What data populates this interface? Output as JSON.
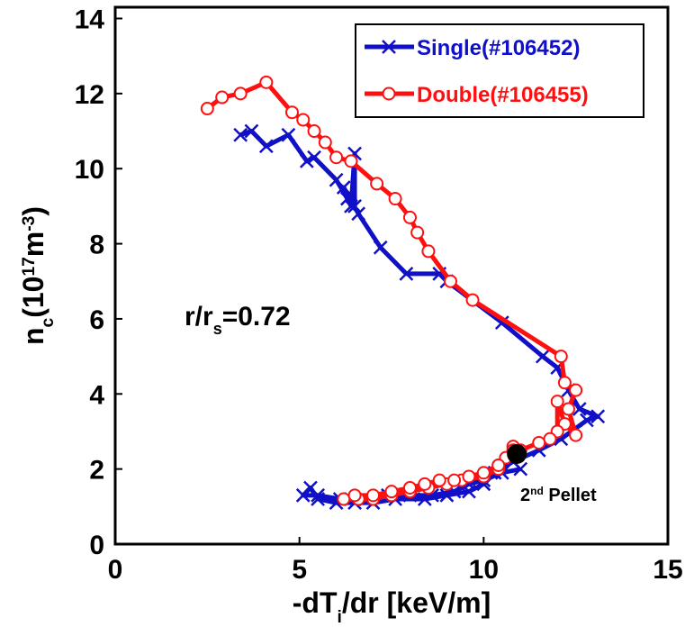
{
  "chart_data": {
    "type": "line",
    "xlabel": [
      {
        "text": "-dT"
      },
      {
        "text": "i",
        "style": "sub"
      },
      {
        "text": "/dr    [keV/m]"
      }
    ],
    "ylabel": [
      {
        "text": "n"
      },
      {
        "text": "c",
        "style": "sub"
      },
      {
        "text": "(10"
      },
      {
        "text": "17",
        "style": "sup"
      },
      {
        "text": "m"
      },
      {
        "text": "-3",
        "style": "sup"
      },
      {
        "text": ")"
      }
    ],
    "annotation": [
      {
        "text": "r/r"
      },
      {
        "text": "s",
        "style": "sub"
      },
      {
        "text": "=0.72"
      }
    ],
    "xlim": [
      0,
      15
    ],
    "xticks": [
      0,
      5,
      10,
      15
    ],
    "ylim": [
      0,
      14.3
    ],
    "yticks": [
      0,
      2,
      4,
      6,
      8,
      10,
      12,
      14
    ],
    "legend": "upper right",
    "series": [
      {
        "name": "Single(#106452)",
        "color": "#1010c8",
        "marker": "x",
        "x": [
          3.4,
          3.7,
          4.1,
          4.7,
          5.2,
          5.4,
          6.0,
          6.3,
          6.4,
          6.5,
          6.5,
          6.2,
          6.6,
          7.2,
          7.9,
          8.8,
          9.0,
          10.5,
          11.6,
          12.0,
          12.3,
          12.6,
          13.1,
          12.8,
          12.1,
          11.5,
          10.8,
          10.3,
          10.0,
          9.6,
          9.0,
          8.4,
          7.6,
          7.0,
          6.5,
          6.0,
          5.5,
          5.3,
          5.1,
          5.5,
          6.1,
          6.8,
          7.4,
          8.0,
          8.6,
          9.2,
          9.6,
          10.0,
          10.5,
          11.0
        ],
        "values": [
          10.9,
          11.0,
          10.6,
          10.9,
          10.2,
          10.3,
          9.7,
          9.2,
          9.0,
          10.4,
          9.0,
          9.5,
          8.8,
          7.9,
          7.2,
          7.2,
          7.0,
          5.9,
          5.0,
          4.7,
          4.1,
          3.6,
          3.4,
          3.3,
          2.8,
          2.5,
          2.2,
          1.9,
          1.6,
          1.4,
          1.3,
          1.2,
          1.2,
          1.1,
          1.1,
          1.1,
          1.2,
          1.5,
          1.3,
          1.3,
          1.2,
          1.2,
          1.3,
          1.3,
          1.3,
          1.4,
          1.6,
          1.7,
          1.9,
          2.0
        ]
      },
      {
        "name": "Double(#106455)",
        "color": "#ff1010",
        "marker": "o",
        "x": [
          2.5,
          2.9,
          3.4,
          4.1,
          4.8,
          5.1,
          5.4,
          5.7,
          6.0,
          6.4,
          7.1,
          7.6,
          8.0,
          8.2,
          8.5,
          9.1,
          9.7,
          12.1,
          12.2,
          12.5,
          12.3,
          12.5,
          12.2,
          12.0,
          12.0,
          11.8,
          11.5,
          11.0,
          10.8,
          10.6,
          10.4,
          10.0,
          9.4,
          9.0,
          8.5,
          8.0,
          7.5,
          7.0,
          6.6,
          6.2,
          6.5,
          7.0,
          7.5,
          8.0,
          8.4,
          8.8,
          9.2,
          9.6,
          10.0,
          10.4,
          10.8
        ],
        "values": [
          11.6,
          11.9,
          12.0,
          12.3,
          11.5,
          11.3,
          11.0,
          10.7,
          10.3,
          10.2,
          9.6,
          9.2,
          8.7,
          8.3,
          7.8,
          7.0,
          6.5,
          5.0,
          4.3,
          4.1,
          3.6,
          2.9,
          3.2,
          3.8,
          3.0,
          2.8,
          2.7,
          2.5,
          2.6,
          2.3,
          2.0,
          1.8,
          1.7,
          1.6,
          1.5,
          1.4,
          1.3,
          1.2,
          1.2,
          1.2,
          1.3,
          1.3,
          1.4,
          1.5,
          1.6,
          1.7,
          1.7,
          1.8,
          1.9,
          2.1,
          2.5
        ]
      }
    ],
    "pellet": {
      "x": 10.9,
      "y": 2.4,
      "label": [
        {
          "text": "2"
        },
        {
          "text": "nd",
          "style": "sup"
        },
        {
          "text": " Pellet"
        }
      ]
    }
  }
}
